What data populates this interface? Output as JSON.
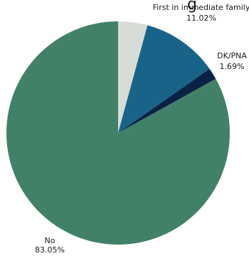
{
  "chart_data": {
    "type": "pie",
    "title_fragment": "g",
    "start_angle_deg": 0,
    "direction": "clockwise",
    "slices": [
      {
        "label": "",
        "value": 4.24,
        "display": "",
        "color": "#d5ddd6"
      },
      {
        "label": "First in immediate family",
        "value": 11.02,
        "display": "11.02%",
        "color": "#186488"
      },
      {
        "label": "DK/PNA",
        "value": 1.69,
        "display": "1.69%",
        "color": "#0b2145"
      },
      {
        "label": "No",
        "value": 83.05,
        "display": "83.05%",
        "color": "#418167"
      }
    ]
  }
}
